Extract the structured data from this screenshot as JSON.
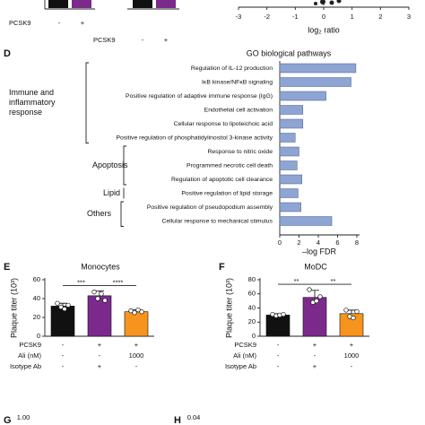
{
  "chart_data": [
    {
      "type": "conditions",
      "groups": [
        {
          "rows": [
            {
              "label": "PCSK9",
              "values": [
                "-",
                "+"
              ]
            }
          ]
        },
        {
          "rows": [
            {
              "label": "PCSK9",
              "values": [
                "-",
                "+"
              ]
            }
          ]
        }
      ]
    },
    {
      "type": "axis",
      "x_label": "log₂ ratio",
      "xlim": [
        -3,
        3
      ],
      "xticks": [
        -3,
        -2,
        -1,
        0,
        1,
        2,
        3
      ]
    },
    {
      "type": "hbar",
      "panel_label": "D",
      "title": "GO biological pathways",
      "x_label": "–log FDR",
      "color": "#8ea4d2",
      "categories": [
        "Regulation of IL-12 production",
        "IκB kinase/NFκB signaling",
        "Positive regulation of adaptive immune response (IgG)",
        "Endothelial cell activation",
        "Cellular response to lipoteichoic acid",
        "Positive regulation of phosphatidylinositol 3-kinase activity",
        "Response to nitric oxide",
        "Programmed necrotic cell death",
        "Regulation of apoptotic cell clearance",
        "Positive regulation of lipid storage",
        "Positive regulation of pseudopodium assembly",
        "Cellular response to mechanical stimulus"
      ],
      "values": [
        7.9,
        7.4,
        4.8,
        2.4,
        2.4,
        1.6,
        2.0,
        1.8,
        2.3,
        1.9,
        2.2,
        5.4
      ],
      "xlim": [
        0,
        8
      ],
      "xticks": [
        0,
        2,
        4,
        6,
        8
      ],
      "groups": [
        {
          "label": "Immune and inflammatory response",
          "lines": [
            "Immune and",
            "inflammatory",
            "response"
          ],
          "rows": [
            0,
            5
          ]
        },
        {
          "label": "Apoptosis",
          "rows": [
            6,
            8
          ]
        },
        {
          "label": "Lipid",
          "rows": [
            9,
            9
          ]
        },
        {
          "label": "Others",
          "rows": [
            10,
            11
          ]
        }
      ]
    },
    {
      "type": "bar",
      "panel_label": "E",
      "title": "Monocytes",
      "y_label": "Plaque titer (10³)",
      "colors": [
        "#111111",
        "#7b2a8c",
        "#f7941d"
      ],
      "values": [
        32,
        43,
        26
      ],
      "errors": [
        3,
        5,
        2
      ],
      "points": [
        [
          35,
          31,
          29,
          33
        ],
        [
          47,
          40,
          45,
          38
        ],
        [
          27,
          25,
          28,
          26
        ]
      ],
      "ylim": [
        0,
        60
      ],
      "yticks": [
        0,
        20,
        40,
        60
      ],
      "significance": [
        {
          "pair": [
            0,
            1
          ],
          "label": "***"
        },
        {
          "pair": [
            1,
            2
          ],
          "label": "****"
        }
      ],
      "condition_rows": [
        {
          "label": "PCSK9",
          "values": [
            "-",
            "+",
            "+"
          ]
        },
        {
          "label": "Ali (nM)",
          "values": [
            "-",
            "-",
            "1000"
          ]
        },
        {
          "label": "Isotype Ab",
          "values": [
            "-",
            "+",
            "-"
          ]
        }
      ]
    },
    {
      "type": "bar",
      "panel_label": "F",
      "title": "MoDC",
      "y_label": "Plaque titer (10³)",
      "colors": [
        "#111111",
        "#7b2a8c",
        "#f7941d"
      ],
      "values": [
        30,
        55,
        32
      ],
      "errors": [
        2,
        10,
        5
      ],
      "points": [
        [
          31,
          29,
          30,
          31
        ],
        [
          66,
          48,
          50,
          56
        ],
        [
          37,
          28,
          26,
          35
        ]
      ],
      "ylim": [
        0,
        80
      ],
      "yticks": [
        0,
        20,
        40,
        60,
        80
      ],
      "significance": [
        {
          "pair": [
            0,
            1
          ],
          "label": "**"
        },
        {
          "pair": [
            1,
            2
          ],
          "label": "**"
        }
      ],
      "condition_rows": [
        {
          "label": "PCSK9",
          "values": [
            "-",
            "+",
            "+"
          ]
        },
        {
          "label": "Ali (nM)",
          "values": [
            "-",
            "-",
            "1000"
          ]
        },
        {
          "label": "Isotype Ab",
          "values": [
            "-",
            "+",
            "-"
          ]
        }
      ]
    },
    {
      "type": "fragment",
      "panel_label": "G",
      "tick": "1.00"
    },
    {
      "type": "fragment",
      "panel_label": "H",
      "tick": "0.04"
    }
  ]
}
